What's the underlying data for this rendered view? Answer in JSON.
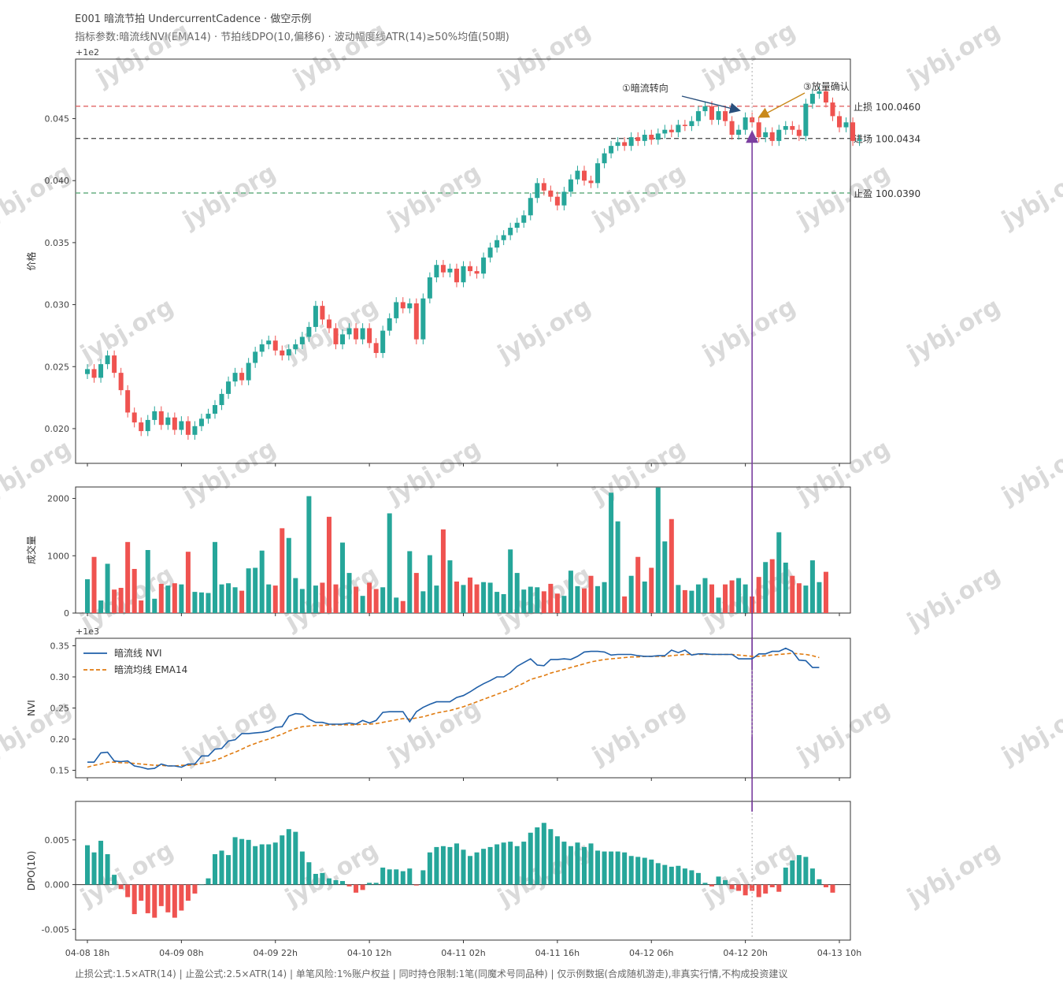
{
  "header": {
    "title": "E001 暗流节拍 UndercurrentCadence · 做空示例",
    "params": "指标参数:暗流线NVI(EMA14) · 节拍线DPO(10,偏移6) · 波动幅度线ATR(14)≥50%均值(50期)"
  },
  "footer": "止损公式:1.5×ATR(14) | 止盈公式:2.5×ATR(14) | 单笔风险:1%账户权益 | 同时持仓限制:1笔(同魔术号同品种) | 仅示例数据(合成随机游走),非真实行情,不构成投资建议",
  "watermark": "jybj.org",
  "colors": {
    "up": "#26a69a",
    "down": "#ef5350",
    "nvi": "#1f5fa8",
    "ema": "#e07b10",
    "signal": "#7b3fa0",
    "stop": "#e06666",
    "take": "#5aa878",
    "entry": "#555555",
    "annot1": "#2a4f7c",
    "annot3": "#c9891a"
  },
  "chart_data": [
    {
      "type": "candlestick",
      "name": "price",
      "ylabel": "价格",
      "offset_label": "+1e2",
      "ylim": [
        100.0172,
        100.0498
      ],
      "yticks": [
        "0.020",
        "0.025",
        "0.030",
        "0.035",
        "0.040",
        "0.045"
      ],
      "ytick_values": [
        100.02,
        100.025,
        100.03,
        100.035,
        100.04,
        100.045
      ],
      "close": [
        100.0248,
        100.0241,
        100.0252,
        100.0259,
        100.0245,
        100.0231,
        100.0213,
        100.0205,
        100.0198,
        100.0207,
        100.0214,
        100.0203,
        100.0209,
        100.0199,
        100.0206,
        100.0195,
        100.0202,
        100.0208,
        100.0212,
        100.0219,
        100.0228,
        100.0238,
        100.0245,
        100.0239,
        100.0253,
        100.0262,
        100.0268,
        100.0271,
        100.0263,
        100.0259,
        100.0264,
        100.0268,
        100.0274,
        100.0282,
        100.0299,
        100.0288,
        100.0281,
        100.0268,
        100.0276,
        100.0281,
        100.0272,
        100.0281,
        100.0269,
        100.0261,
        100.0279,
        100.0289,
        100.0302,
        100.0297,
        100.0301,
        100.0272,
        100.0305,
        100.0322,
        100.0332,
        100.0326,
        100.0329,
        100.0318,
        100.0331,
        100.0327,
        100.0325,
        100.0338,
        100.0346,
        100.0352,
        100.0356,
        100.0362,
        100.0366,
        100.0372,
        100.0386,
        100.0398,
        100.0392,
        100.0387,
        100.038,
        100.0391,
        100.0401,
        100.0408,
        100.04,
        100.0398,
        100.0414,
        100.0422,
        100.0428,
        100.0431,
        100.0428,
        100.0435,
        100.0432,
        100.0437,
        100.0433,
        100.0438,
        100.0441,
        100.0439,
        100.0445,
        100.0444,
        100.0448,
        100.0456,
        100.046,
        100.0449,
        100.0456,
        100.0448,
        100.0437,
        100.0441,
        100.0451,
        100.0447,
        100.0435,
        100.0439,
        100.0432,
        100.0441,
        100.0444,
        100.0441,
        100.0436,
        100.0462,
        100.047,
        100.0472,
        100.0463,
        100.0452,
        100.0443,
        100.0447,
        100.0432,
        100.0433
      ],
      "entry_index": 99,
      "levels": [
        {
          "label": "止损 100.0460",
          "value": 100.046,
          "role": "stop"
        },
        {
          "label": "进场 100.0434",
          "value": 100.0434,
          "role": "entry"
        },
        {
          "label": "止盈 100.0390",
          "value": 100.039,
          "role": "take"
        }
      ],
      "annotations": [
        {
          "text": "①暗流转向",
          "index": 97,
          "value": 100.0458
        },
        {
          "text": "③放量确认",
          "index": 102,
          "value": 100.0454
        }
      ]
    },
    {
      "type": "bar",
      "name": "volume",
      "ylabel": "成交量",
      "ylim": [
        0,
        2200
      ],
      "yticks": [
        "0",
        "1000",
        "2000"
      ],
      "ytick_values": [
        0,
        1000,
        2000
      ],
      "values": [
        590,
        980,
        220,
        860,
        410,
        440,
        1240,
        770,
        220,
        1100,
        250,
        510,
        480,
        520,
        500,
        1070,
        370,
        360,
        350,
        1240,
        500,
        520,
        450,
        390,
        780,
        790,
        1090,
        500,
        480,
        1480,
        1310,
        610,
        420,
        2040,
        480,
        530,
        1680,
        500,
        1230,
        700,
        460,
        300,
        530,
        420,
        450,
        1740,
        270,
        210,
        1080,
        700,
        380,
        1010,
        480,
        1460,
        920,
        550,
        490,
        620,
        500,
        540,
        530,
        370,
        330,
        1110,
        700,
        410,
        460,
        450,
        380,
        510,
        340,
        300,
        740,
        470,
        430,
        650,
        470,
        540,
        2100,
        1600,
        290,
        650,
        980,
        550,
        790,
        2190,
        1250,
        1640,
        490,
        400,
        390,
        500,
        610,
        500,
        270,
        500,
        570,
        610,
        500,
        290,
        630,
        890,
        940,
        1410,
        880,
        650,
        520,
        480,
        920,
        540,
        720
      ],
      "signal_index": 99
    },
    {
      "type": "line",
      "name": "NVI",
      "ylabel": "NVI",
      "offset_label": "+1e3",
      "ylim": [
        1000.138,
        1000.362
      ],
      "yticks": [
        "0.15",
        "0.20",
        "0.25",
        "0.30",
        "0.35"
      ],
      "ytick_values": [
        1000.15,
        1000.2,
        1000.25,
        1000.3,
        1000.35
      ],
      "legend_position": "upper-left",
      "series": [
        {
          "name": "暗流线 NVI",
          "values": [
            1000.163,
            1000.163,
            1000.178,
            1000.179,
            1000.165,
            1000.164,
            1000.165,
            1000.157,
            1000.155,
            1000.152,
            1000.153,
            1000.16,
            1000.157,
            1000.157,
            1000.155,
            1000.16,
            1000.16,
            1000.173,
            1000.173,
            1000.184,
            1000.185,
            1000.197,
            1000.199,
            1000.209,
            1000.209,
            1000.21,
            1000.211,
            1000.213,
            1000.219,
            1000.22,
            1000.237,
            1000.241,
            1000.24,
            1000.232,
            1000.227,
            1000.227,
            1000.224,
            1000.224,
            1000.224,
            1000.226,
            1000.224,
            1000.23,
            1000.226,
            1000.23,
            1000.243,
            1000.244,
            1000.244,
            1000.244,
            1000.228,
            1000.244,
            1000.251,
            1000.256,
            1000.26,
            1000.26,
            1000.26,
            1000.267,
            1000.27,
            1000.276,
            1000.283,
            1000.289,
            1000.294,
            1000.3,
            1000.3,
            1000.307,
            1000.317,
            1000.323,
            1000.329,
            1000.319,
            1000.318,
            1000.328,
            1000.328,
            1000.329,
            1000.328,
            1000.333,
            1000.34,
            1000.341,
            1000.341,
            1000.34,
            1000.335,
            1000.336,
            1000.336,
            1000.336,
            1000.334,
            1000.333,
            1000.333,
            1000.334,
            1000.334,
            1000.343,
            1000.339,
            1000.343,
            1000.335,
            1000.337,
            1000.337,
            1000.336,
            1000.336,
            1000.336,
            1000.336,
            1000.329,
            1000.329,
            1000.329,
            1000.337,
            1000.337,
            1000.341,
            1000.341,
            1000.346,
            1000.341,
            1000.327,
            1000.326,
            1000.315,
            1000.315
          ]
        },
        {
          "name": "暗流均线 EMA14",
          "values": [
            1000.155,
            1000.158,
            1000.16,
            1000.163,
            1000.163,
            1000.162,
            1000.162,
            1000.161,
            1000.16,
            1000.159,
            1000.158,
            1000.158,
            1000.157,
            1000.157,
            1000.158,
            1000.158,
            1000.159,
            1000.161,
            1000.163,
            1000.166,
            1000.17,
            1000.175,
            1000.179,
            1000.184,
            1000.189,
            1000.193,
            1000.197,
            1000.2,
            1000.204,
            1000.208,
            1000.213,
            1000.217,
            1000.22,
            1000.221,
            1000.222,
            1000.222,
            1000.223,
            1000.223,
            1000.223,
            1000.223,
            1000.223,
            1000.224,
            1000.224,
            1000.225,
            1000.227,
            1000.229,
            1000.231,
            1000.233,
            1000.232,
            1000.234,
            1000.236,
            1000.239,
            1000.242,
            1000.244,
            1000.246,
            1000.249,
            1000.252,
            1000.256,
            1000.26,
            1000.264,
            1000.268,
            1000.272,
            1000.276,
            1000.28,
            1000.285,
            1000.29,
            1000.296,
            1000.299,
            1000.302,
            1000.306,
            1000.309,
            1000.312,
            1000.315,
            1000.318,
            1000.321,
            1000.324,
            1000.326,
            1000.328,
            1000.329,
            1000.33,
            1000.331,
            1000.332,
            1000.332,
            1000.333,
            1000.333,
            1000.333,
            1000.333,
            1000.334,
            1000.335,
            1000.336,
            1000.336,
            1000.336,
            1000.336,
            1000.336,
            1000.336,
            1000.336,
            1000.336,
            1000.335,
            1000.334,
            1000.333,
            1000.333,
            1000.334,
            1000.335,
            1000.336,
            1000.337,
            1000.338,
            1000.337,
            1000.336,
            1000.334,
            1000.331
          ]
        }
      ]
    },
    {
      "type": "bar",
      "name": "DPO",
      "ylabel": "DPO(10)",
      "ylim": [
        -0.0062,
        0.0093
      ],
      "yticks": [
        "-0.005",
        "0.000",
        "0.005"
      ],
      "ytick_values": [
        -0.005,
        0.0,
        0.005
      ],
      "values": [
        0.0044,
        0.0036,
        0.0049,
        0.0034,
        0.0011,
        -0.0005,
        -0.0014,
        -0.0033,
        -0.0018,
        -0.0032,
        -0.0037,
        -0.0024,
        -0.0031,
        -0.0037,
        -0.0029,
        -0.0018,
        -0.001,
        0,
        0.0007,
        0.0034,
        0.0038,
        0.0033,
        0.0053,
        0.0051,
        0.005,
        0.0043,
        0.0045,
        0.0045,
        0.0047,
        0.0055,
        0.0062,
        0.0059,
        0.0037,
        0.0025,
        0.0012,
        0.0013,
        0.0007,
        0.0005,
        0.0004,
        -0.0002,
        -0.0009,
        -0.0006,
        0.0002,
        0.0002,
        0.0019,
        0.0017,
        0.0017,
        0.0015,
        0.0018,
        -0.0001,
        0.0016,
        0.0036,
        0.0042,
        0.0043,
        0.0042,
        0.0046,
        0.0039,
        0.0032,
        0.0036,
        0.004,
        0.0042,
        0.0045,
        0.0047,
        0.0048,
        0.0043,
        0.0048,
        0.0058,
        0.0064,
        0.0069,
        0.0062,
        0.0054,
        0.0048,
        0.0043,
        0.0047,
        0.0042,
        0.0046,
        0.0038,
        0.0037,
        0.0037,
        0.0037,
        0.0036,
        0.0032,
        0.0031,
        0.003,
        0.0028,
        0.0024,
        0.0022,
        0.002,
        0.0021,
        0.0018,
        0.0016,
        0.0013,
        0.0002,
        -0.0002,
        0.0009,
        0.0005,
        -0.0005,
        -0.0007,
        -0.0012,
        -0.0007,
        -0.0014,
        -0.001,
        -0.0003,
        -0.0008,
        0.0019,
        0.0027,
        0.0033,
        0.0031,
        0.0018,
        0.0006,
        -0.0003,
        -0.0009
      ],
      "signal_index": 99
    }
  ],
  "x_axis": {
    "labels": [
      "04-08 18h",
      "04-09 08h",
      "04-09 22h",
      "04-10 12h",
      "04-11 02h",
      "04-11 16h",
      "04-12 06h",
      "04-12 20h",
      "04-13 10h"
    ],
    "label_indices": [
      0,
      14,
      28,
      42,
      56,
      70,
      84,
      98,
      112
    ]
  }
}
